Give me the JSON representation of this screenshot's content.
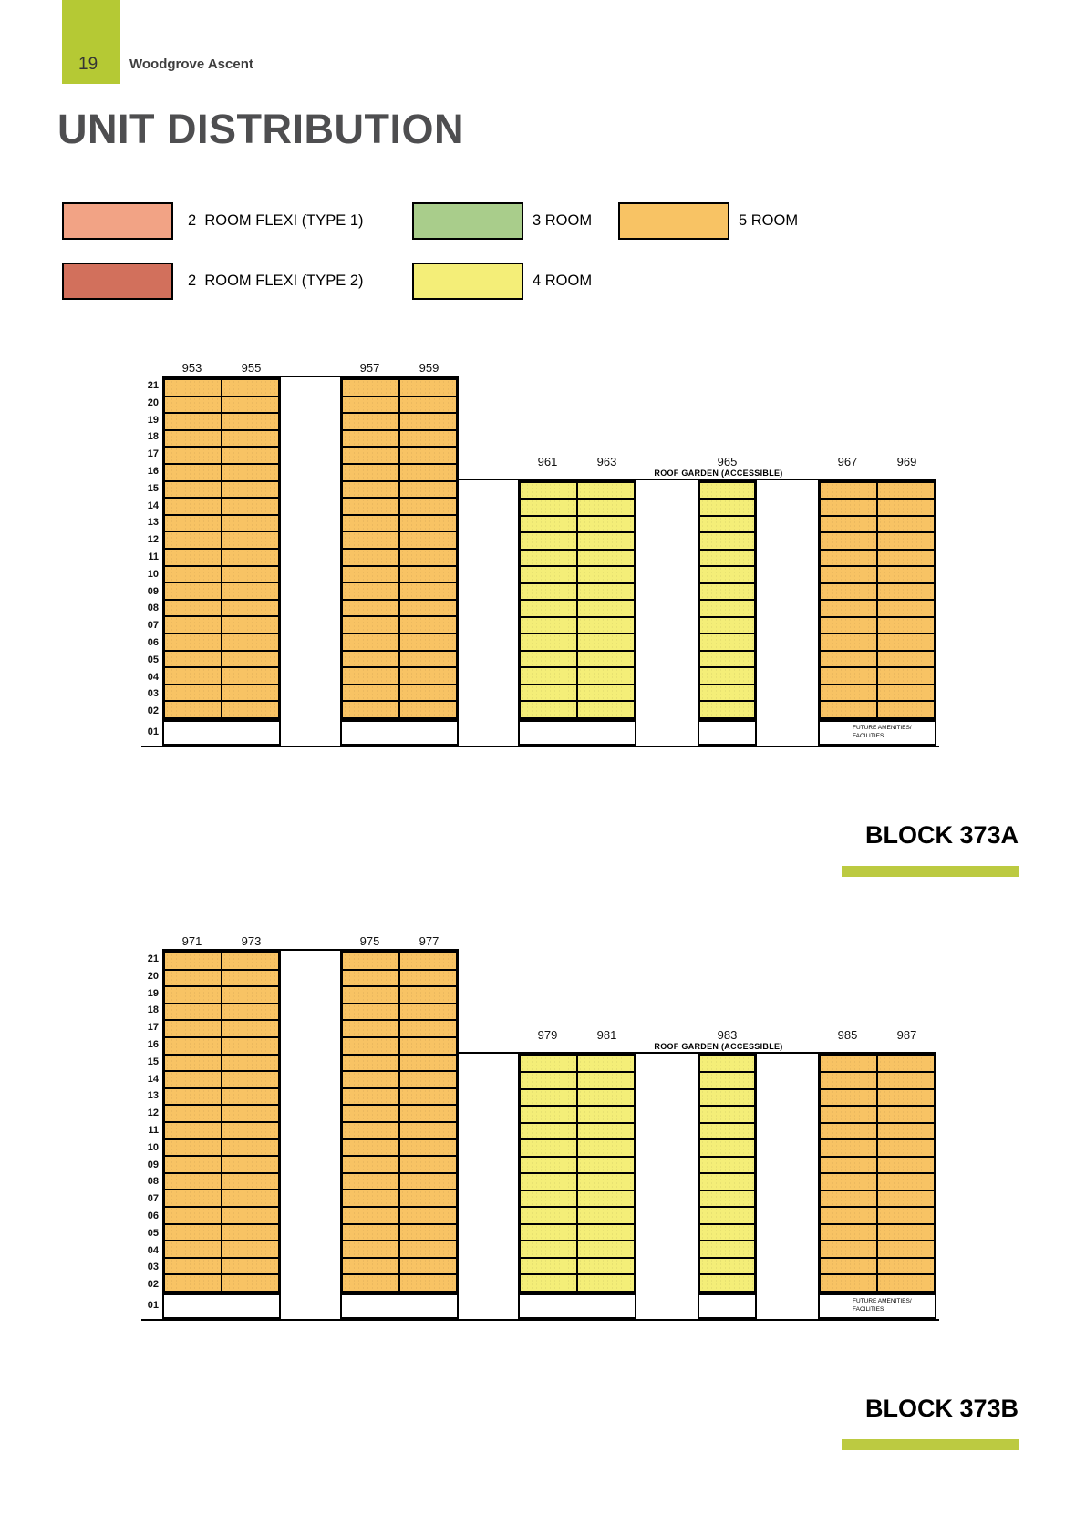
{
  "page": {
    "number": "19",
    "brand": "Woodgrove Ascent",
    "title": "UNIT DISTRIBUTION"
  },
  "colors": {
    "room2_flexi_type1": "#F2A385",
    "room2_flexi_type2": "#D2705C",
    "room3": "#A9CD8B",
    "room4": "#F4EE78",
    "room5": "#F8C364",
    "accent_green": "#B5C934",
    "underline_green": "#BCCA41"
  },
  "legend": {
    "items": [
      {
        "label": "2  ROOM FLEXI (TYPE 1)",
        "type": "room2_flexi_type1",
        "row": 0,
        "col": 0
      },
      {
        "label": "3 ROOM",
        "type": "room3",
        "row": 0,
        "col": 1
      },
      {
        "label": "5 ROOM",
        "type": "room5",
        "row": 0,
        "col": 2
      },
      {
        "label": "2  ROOM FLEXI (TYPE 2)",
        "type": "room2_flexi_type2",
        "row": 1,
        "col": 0
      },
      {
        "label": "4 ROOM",
        "type": "room4",
        "row": 1,
        "col": 1
      }
    ]
  },
  "floors": {
    "upper_labels": [
      "21",
      "20",
      "19",
      "18",
      "17",
      "16",
      "15",
      "14",
      "13",
      "12",
      "11",
      "10",
      "09",
      "08",
      "07",
      "06",
      "05",
      "04",
      "03",
      "02"
    ],
    "ground_label": "01"
  },
  "blocks": [
    {
      "name": "BLOCK 373A",
      "roof_garden_label": "ROOF GARDEN (ACCESSIBLE)",
      "amenities_lines": [
        "FUTURE AMENITIES/",
        "FACILITIES"
      ],
      "stacks": [
        {
          "units": [
            "953",
            "955"
          ],
          "type": "room5",
          "height": "tall"
        },
        {
          "units": [
            "957",
            "959"
          ],
          "type": "room5",
          "height": "tall"
        },
        {
          "units": [
            "961",
            "963"
          ],
          "type": "room4",
          "height": "short"
        },
        {
          "units": [
            "965"
          ],
          "type": "room4",
          "height": "short"
        },
        {
          "units": [
            "967",
            "969"
          ],
          "type": "room5",
          "height": "short",
          "amenities": true
        }
      ]
    },
    {
      "name": "BLOCK 373B",
      "roof_garden_label": "ROOF GARDEN (ACCESSIBLE)",
      "amenities_lines": [
        "FUTURE AMENITIES/",
        "FACILITIES"
      ],
      "stacks": [
        {
          "units": [
            "971",
            "973"
          ],
          "type": "room5",
          "height": "tall"
        },
        {
          "units": [
            "975",
            "977"
          ],
          "type": "room5",
          "height": "tall"
        },
        {
          "units": [
            "979",
            "981"
          ],
          "type": "room4",
          "height": "short"
        },
        {
          "units": [
            "983"
          ],
          "type": "room4",
          "height": "short"
        },
        {
          "units": [
            "985",
            "987"
          ],
          "type": "room5",
          "height": "short",
          "amenities": true
        }
      ]
    }
  ]
}
